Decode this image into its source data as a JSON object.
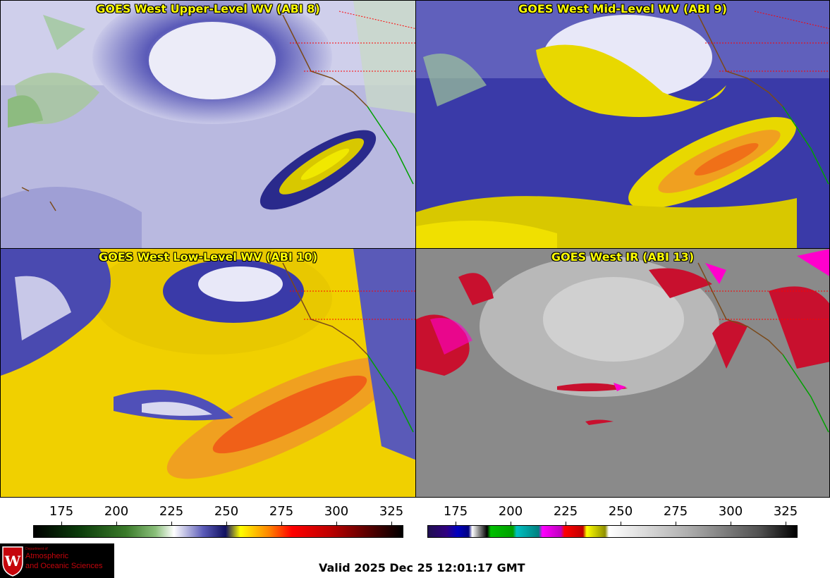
{
  "panels": {
    "upper": {
      "title": "GOES West Upper-Level WV (ABI 8)"
    },
    "mid": {
      "title": "GOES West Mid-Level WV (ABI 9)"
    },
    "low": {
      "title": "GOES West Low-Level WV (ABI 10)"
    },
    "ir": {
      "title": "GOES West IR (ABI 13)"
    }
  },
  "colorbars": {
    "wv": {
      "ticks": [
        "175",
        "200",
        "225",
        "250",
        "275",
        "300",
        "325"
      ]
    },
    "ir": {
      "ticks": [
        "175",
        "200",
        "225",
        "250",
        "275",
        "300",
        "325"
      ]
    }
  },
  "logo": {
    "line1": "Department of",
    "line2": "Atmospheric",
    "line3": "and Oceanic Sciences"
  },
  "valid_time": "Valid 2025 Dec 25 12:01:17 GMT",
  "colors": {
    "title_text": "#ffff00",
    "state_borders": "#ff0000",
    "coastline_us": "#8b4513",
    "coastline_mexico": "#00aa00"
  }
}
